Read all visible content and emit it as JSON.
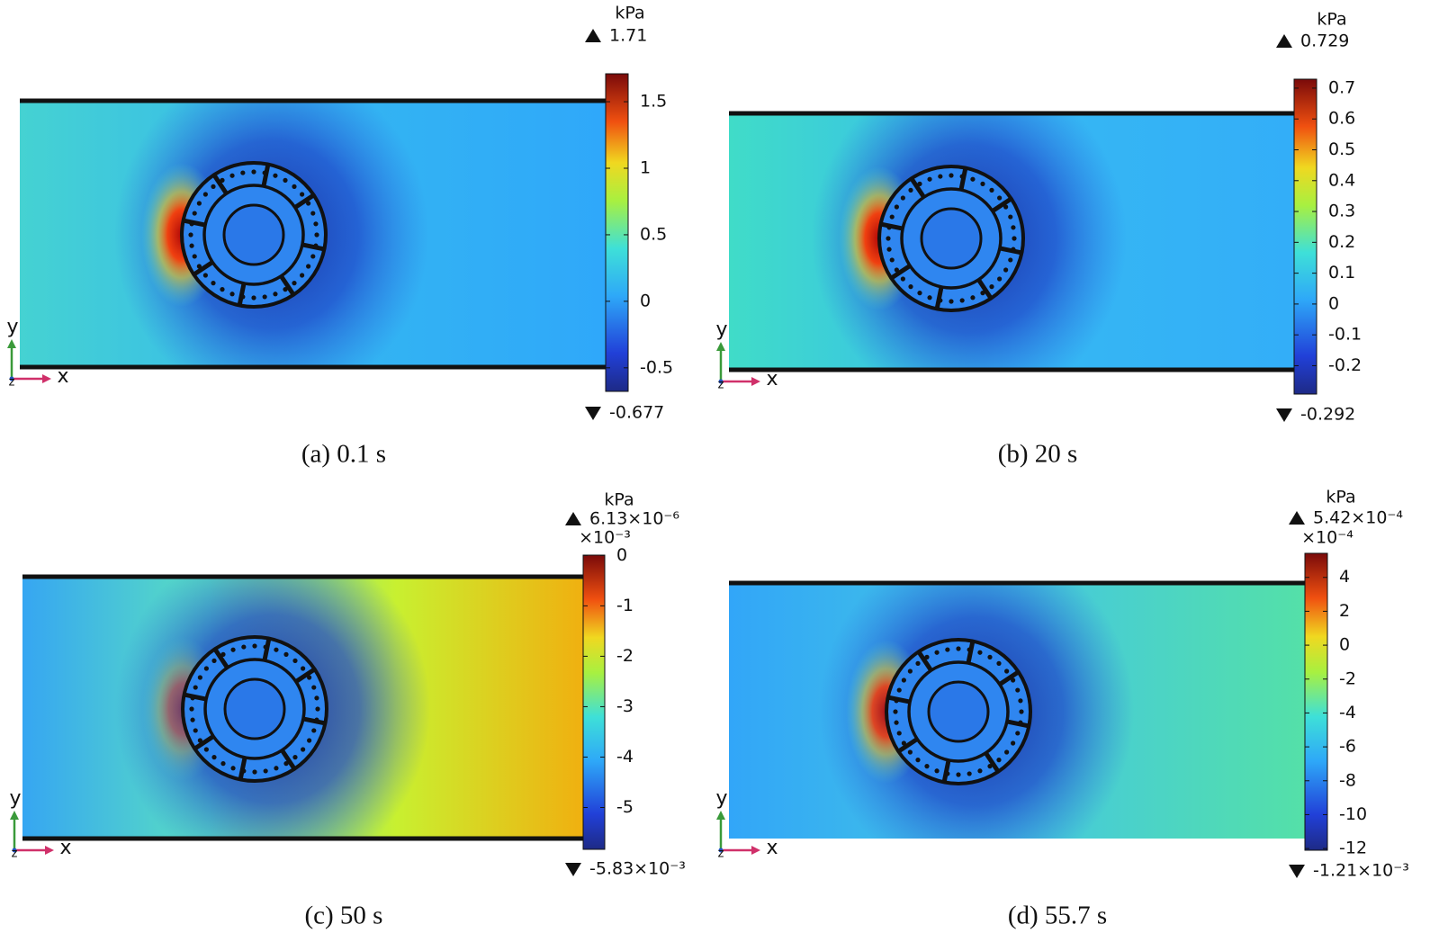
{
  "panels": [
    {
      "caption": "(a) 0.1 s",
      "unit": "kPa",
      "max_label": "1.71",
      "min_label": "-0.677",
      "clim": [
        -0.677,
        1.71
      ],
      "ticks": [
        1.5,
        1,
        0.5,
        0,
        -0.5
      ],
      "axis_labels": {
        "x": "x",
        "y": "y",
        "z": "z"
      }
    },
    {
      "caption": "(b) 20 s",
      "unit": "kPa",
      "max_label": "0.729",
      "min_label": "-0.292",
      "clim": [
        -0.292,
        0.729
      ],
      "ticks": [
        0.7,
        0.6,
        0.5,
        0.4,
        0.3,
        0.2,
        0.1,
        0,
        -0.1,
        -0.2
      ],
      "axis_labels": {
        "x": "x",
        "y": "y",
        "z": "z"
      }
    },
    {
      "caption": "(c) 50 s",
      "unit": "kPa",
      "max_label": "6.13×10⁻⁶",
      "multiplier": "×10⁻³",
      "min_label": "-5.83×10⁻³",
      "clim": [
        -5.83,
        0.00613
      ],
      "ticks": [
        0,
        -1,
        -2,
        -3,
        -4,
        -5
      ],
      "axis_labels": {
        "x": "x",
        "y": "y",
        "z": "z"
      }
    },
    {
      "caption": "(d) 55.7 s",
      "unit": "kPa",
      "max_label": "5.42×10⁻⁴",
      "multiplier": "×10⁻⁴",
      "min_label": "-1.21×10⁻³",
      "clim": [
        -12.1,
        5.42
      ],
      "ticks": [
        4,
        2,
        0,
        -2,
        -4,
        -6,
        -8,
        -10,
        -12
      ],
      "axis_labels": {
        "x": "x",
        "y": "y",
        "z": "z"
      }
    }
  ]
}
